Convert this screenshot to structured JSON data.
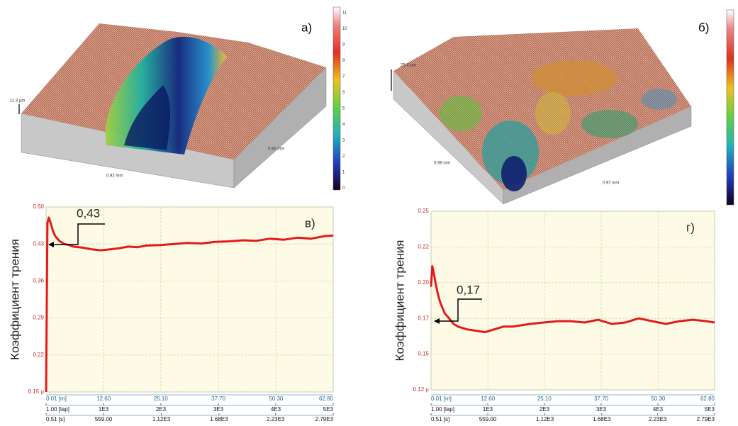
{
  "surfaces": [
    {
      "label": "а)",
      "height": "11.3 µm",
      "width_x": "0.92 mm",
      "width_y": "0.92 mm",
      "colorbar_ticks": [
        "11",
        "10",
        "9",
        "8",
        "7",
        "6",
        "5",
        "4",
        "3",
        "2",
        "1",
        "0"
      ]
    },
    {
      "label": "б)",
      "height": "25.4 µm",
      "width_x": "0.98 mm",
      "width_y": "0.97 mm"
    }
  ],
  "chart_data": [
    {
      "type": "line",
      "label": "в)",
      "ylabel": "Коэффициент трения",
      "annotation": "0,43",
      "x": [
        0.01,
        0.3,
        0.6,
        1,
        1.5,
        2,
        3,
        4,
        5,
        6,
        8,
        10,
        12,
        14,
        16,
        18,
        20,
        22,
        25,
        28,
        31,
        34,
        37,
        40,
        43,
        46,
        49,
        52,
        55,
        58,
        61,
        62.8
      ],
      "series": [
        {
          "color": "#e41a1a",
          "values": [
            0.15,
            0.47,
            0.48,
            0.47,
            0.455,
            0.445,
            0.435,
            0.43,
            0.428,
            0.425,
            0.423,
            0.42,
            0.418,
            0.42,
            0.422,
            0.425,
            0.424,
            0.427,
            0.428,
            0.43,
            0.432,
            0.431,
            0.434,
            0.435,
            0.437,
            0.436,
            0.44,
            0.438,
            0.442,
            0.44,
            0.445,
            0.446
          ]
        }
      ],
      "xlim": [
        0.01,
        62.8
      ],
      "xticks": [
        {
          "value": 0.01,
          "label": "0.01 [m]"
        },
        {
          "value": 12.6,
          "label": "12.60"
        },
        {
          "value": 25.1,
          "label": "25.10"
        },
        {
          "value": 37.7,
          "label": "37.70"
        },
        {
          "value": 50.3,
          "label": "50.30"
        },
        {
          "value": 62.8,
          "label": "62.80"
        }
      ],
      "x2lim": [
        1,
        5000
      ],
      "x2ticks": [
        {
          "value": 1,
          "label": "1.00 [lap]"
        },
        {
          "value": 1000,
          "label": "1E3"
        },
        {
          "value": 2000,
          "label": "2E3"
        },
        {
          "value": 3000,
          "label": "3E3"
        },
        {
          "value": 4000,
          "label": "4E3"
        },
        {
          "value": 5000,
          "label": "5E3"
        }
      ],
      "x3lim": [
        0.51,
        2790
      ],
      "x3ticks": [
        {
          "value": 0.51,
          "label": "0.51 [s]"
        },
        {
          "value": 559,
          "label": "559.00"
        },
        {
          "value": 1120,
          "label": "1.12E3"
        },
        {
          "value": 1680,
          "label": "1.68E3"
        },
        {
          "value": 2230,
          "label": "2.23E3"
        },
        {
          "value": 2790,
          "label": "2.79E3"
        }
      ],
      "ylim": [
        0.15,
        0.5
      ],
      "yticks": [
        {
          "value": 0.15,
          "label": "0.15 μ"
        },
        0.22,
        0.29,
        0.36,
        0.43,
        {
          "value": 0.5,
          "label": "0.50"
        }
      ],
      "grid": true
    },
    {
      "type": "line",
      "label": "г)",
      "ylabel": "Коэффициент трения",
      "annotation": "0,17",
      "x": [
        0.01,
        0.3,
        0.6,
        1,
        1.5,
        2,
        3,
        4,
        5,
        6,
        8,
        10,
        12,
        14,
        16,
        18,
        20,
        22,
        25,
        28,
        31,
        34,
        37,
        40,
        43,
        46,
        49,
        52,
        55,
        58,
        61,
        62.8
      ],
      "series": [
        {
          "color": "#e41a1a",
          "values": [
            0.195,
            0.21,
            0.205,
            0.198,
            0.19,
            0.184,
            0.176,
            0.172,
            0.168,
            0.166,
            0.164,
            0.163,
            0.162,
            0.164,
            0.166,
            0.166,
            0.167,
            0.168,
            0.169,
            0.17,
            0.17,
            0.169,
            0.171,
            0.168,
            0.169,
            0.172,
            0.17,
            0.168,
            0.17,
            0.171,
            0.17,
            0.169
          ]
        }
      ],
      "xlim": [
        0.01,
        62.8
      ],
      "xticks": [
        {
          "value": 0.01,
          "label": "0.01 [m]"
        },
        {
          "value": 12.6,
          "label": "12.60"
        },
        {
          "value": 25.1,
          "label": "25.10"
        },
        {
          "value": 37.7,
          "label": "37.70"
        },
        {
          "value": 50.3,
          "label": "50.30"
        },
        {
          "value": 62.8,
          "label": "62.80"
        }
      ],
      "x2lim": [
        1,
        5000
      ],
      "x2ticks": [
        {
          "value": 1,
          "label": "1.00 [lap]"
        },
        {
          "value": 1000,
          "label": "1E3"
        },
        {
          "value": 2000,
          "label": "2E3"
        },
        {
          "value": 3000,
          "label": "3E3"
        },
        {
          "value": 4000,
          "label": "4E3"
        },
        {
          "value": 5000,
          "label": "5E3"
        }
      ],
      "x3lim": [
        0.51,
        2790
      ],
      "x3ticks": [
        {
          "value": 0.51,
          "label": "0.51 [s]"
        },
        {
          "value": 559,
          "label": "559.00"
        },
        {
          "value": 1120,
          "label": "1.12E3"
        },
        {
          "value": 1680,
          "label": "1.68E3"
        },
        {
          "value": 2230,
          "label": "2.23E3"
        },
        {
          "value": 2790,
          "label": "2.79E3"
        }
      ],
      "ylim": [
        0.12,
        0.25
      ],
      "yticks": [
        {
          "value": 0.12,
          "label": "0.12 μ"
        },
        {
          "value": 0.146,
          "label": "0.15"
        },
        {
          "value": 0.172,
          "label": "0.17"
        },
        {
          "value": 0.198,
          "label": "0.20"
        },
        {
          "value": 0.224,
          "label": "0.22"
        },
        0.25
      ],
      "grid": true
    }
  ]
}
